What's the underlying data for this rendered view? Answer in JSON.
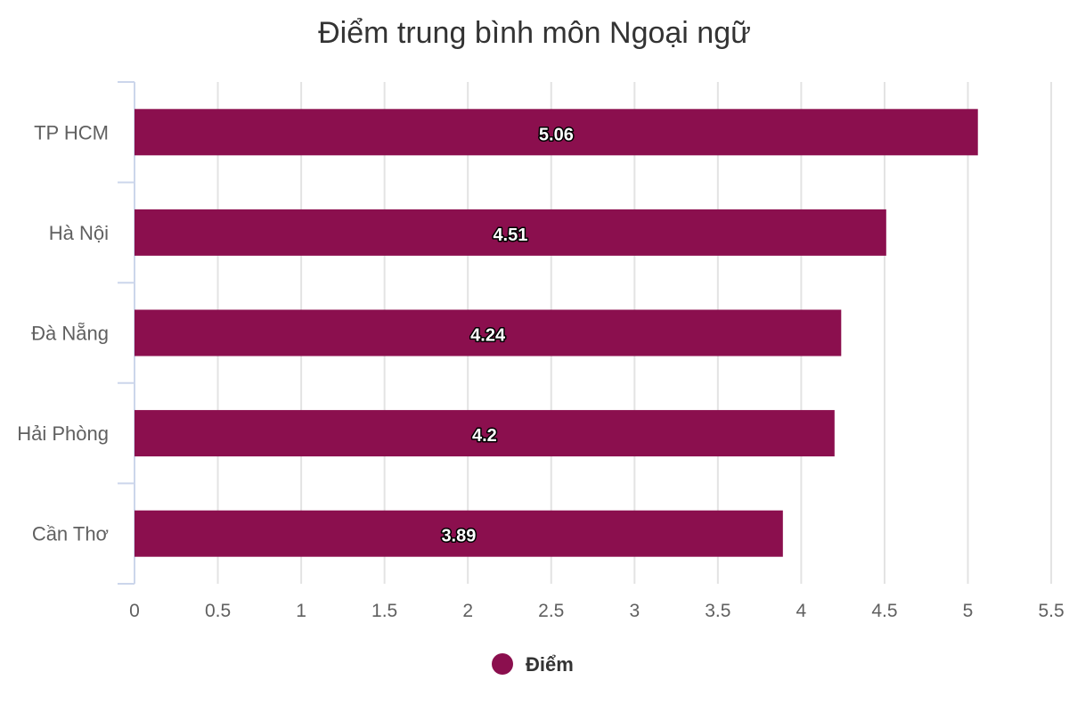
{
  "chart_data": {
    "type": "bar",
    "orientation": "horizontal",
    "title": "Điểm trung bình môn Ngoại ngữ",
    "categories": [
      "TP HCM",
      "Hà Nội",
      "Đà Nẵng",
      "Hải Phòng",
      "Cần Thơ"
    ],
    "series": [
      {
        "name": "Điểm",
        "values": [
          5.06,
          4.51,
          4.24,
          4.2,
          3.89
        ],
        "data_labels": [
          "5.06",
          "4.51",
          "4.24",
          "4.2",
          "3.89"
        ],
        "color": "#8b0f4e"
      }
    ],
    "x_ticks": [
      "0",
      "0.5",
      "1",
      "1.5",
      "2",
      "2.5",
      "3",
      "3.5",
      "4",
      "4.5",
      "5",
      "5.5"
    ],
    "xlim": [
      0,
      5.5
    ],
    "grid": true,
    "legend_position": "bottom"
  }
}
